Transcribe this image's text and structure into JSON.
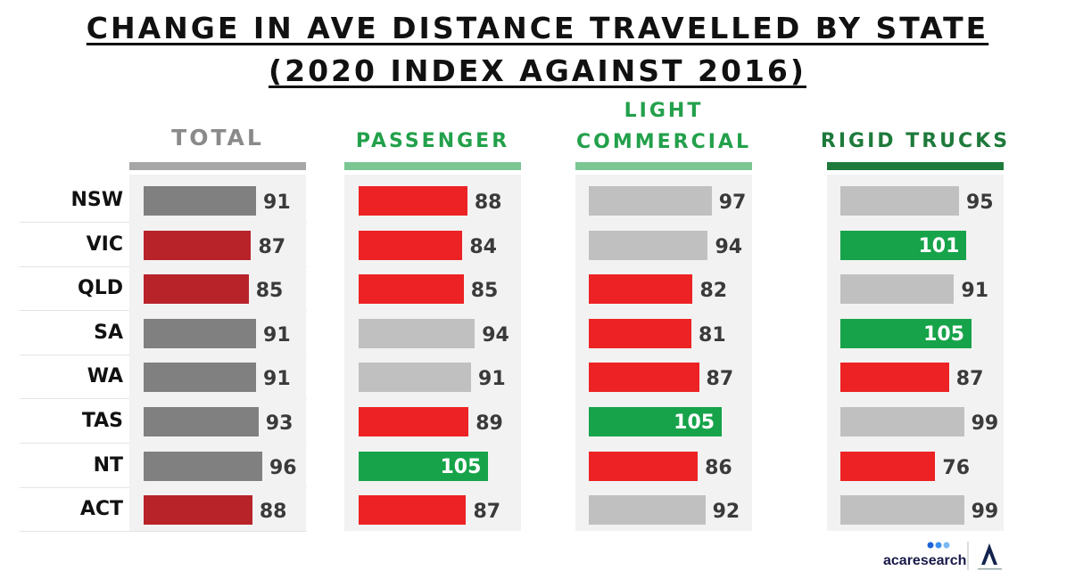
{
  "title": {
    "line1": "CHANGE IN AVE DISTANCE TRAVELLED BY STATE",
    "line2": "(2020 INDEX AGAINST 2016)"
  },
  "logo": {
    "brand": "acaresearch"
  },
  "colors": {
    "red": "#ed2224",
    "dark_red": "#b8232a",
    "green": "#17a34a",
    "light_grey": "#c0c0c0",
    "dark_grey": "#808080",
    "header_total": "#8a8a8a",
    "header_passenger": "#23a04b",
    "header_light_commercial": "#23a04b",
    "header_rigid_trucks": "#1e7a3b"
  },
  "chart_data": {
    "type": "bar",
    "orientation": "horizontal",
    "categories": [
      "NSW",
      "VIC",
      "QLD",
      "SA",
      "WA",
      "TAS",
      "NT",
      "ACT"
    ],
    "panels": [
      {
        "name": "TOTAL",
        "header_lines": [
          "TOTAL"
        ],
        "values": [
          91,
          87,
          85,
          91,
          91,
          93,
          96,
          88
        ],
        "bar_colors": [
          "dark_grey",
          "dark_red",
          "dark_red",
          "dark_grey",
          "dark_grey",
          "dark_grey",
          "dark_grey",
          "dark_red"
        ]
      },
      {
        "name": "PASSENGER",
        "header_lines": [
          "PASSENGER"
        ],
        "values": [
          88,
          84,
          85,
          94,
          91,
          89,
          105,
          87
        ],
        "bar_colors": [
          "red",
          "red",
          "red",
          "light_grey",
          "light_grey",
          "red",
          "green",
          "red"
        ]
      },
      {
        "name": "LIGHT COMMERCIAL",
        "header_lines": [
          "LIGHT",
          "COMMERCIAL"
        ],
        "values": [
          97,
          94,
          82,
          81,
          87,
          105,
          86,
          92
        ],
        "bar_colors": [
          "light_grey",
          "light_grey",
          "red",
          "red",
          "red",
          "green",
          "red",
          "light_grey"
        ]
      },
      {
        "name": "RIGID TRUCKS",
        "header_lines": [
          "RIGID TRUCKS"
        ],
        "values": [
          95,
          101,
          91,
          105,
          87,
          99,
          76,
          99
        ],
        "bar_colors": [
          "light_grey",
          "green",
          "light_grey",
          "green",
          "red",
          "light_grey",
          "red",
          "light_grey"
        ]
      }
    ],
    "value_labels": "shown on each bar"
  }
}
